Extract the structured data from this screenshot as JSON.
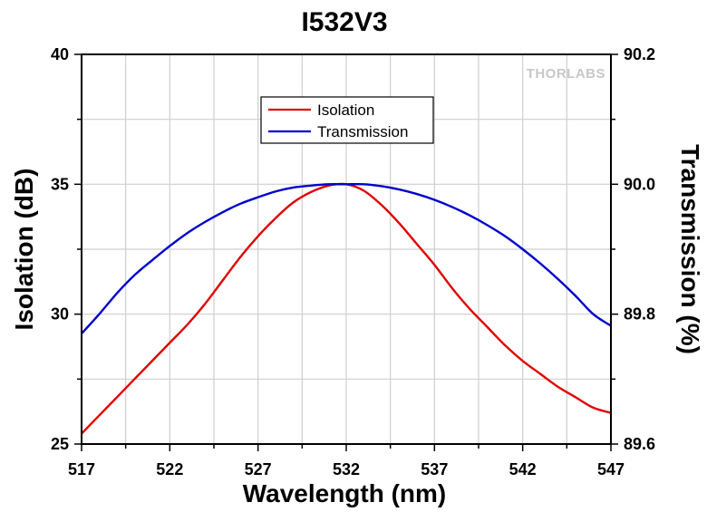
{
  "chart_data": {
    "type": "line",
    "title": "I532V3",
    "xlabel": "Wavelength (nm)",
    "ylabel_left": "Isolation (dB)",
    "ylabel_right": "Transmission (%)",
    "xlim": [
      517,
      547
    ],
    "ylim_left": [
      25,
      40
    ],
    "ylim_right": [
      89.6,
      90.2
    ],
    "x_ticks": [
      517,
      522,
      527,
      532,
      537,
      542,
      547
    ],
    "x_tick_labels": [
      "517",
      "522",
      "527",
      "532",
      "537",
      "542",
      "547"
    ],
    "y_left_ticks": [
      25,
      30,
      35,
      40
    ],
    "y_left_tick_labels": [
      "25",
      "30",
      "35",
      "40"
    ],
    "y_right_ticks": [
      89.6,
      89.8,
      90.0,
      90.2
    ],
    "y_right_tick_labels": [
      "89.6",
      "89.8",
      "90.0",
      "90.2"
    ],
    "grid": true,
    "legend_position": "top-center",
    "logo": "THORLABS",
    "series": [
      {
        "name": "Isolation",
        "color": "#e00000",
        "axis": "left",
        "x": [
          517,
          518,
          519,
          520,
          521,
          522,
          523,
          524,
          525,
          526,
          527,
          528,
          529,
          530,
          531,
          532,
          533,
          534,
          535,
          536,
          537,
          538,
          539,
          540,
          541,
          542,
          543,
          544,
          545,
          546,
          547
        ],
        "y": [
          25.4,
          26.1,
          26.8,
          27.5,
          28.2,
          28.9,
          29.6,
          30.4,
          31.3,
          32.2,
          33.0,
          33.7,
          34.3,
          34.7,
          34.95,
          35.0,
          34.75,
          34.2,
          33.5,
          32.7,
          31.9,
          31.0,
          30.2,
          29.5,
          28.8,
          28.2,
          27.7,
          27.2,
          26.8,
          26.4,
          26.2
        ]
      },
      {
        "name": "Transmission",
        "color": "#0000cc",
        "axis": "right",
        "x": [
          517,
          518,
          519,
          520,
          521,
          522,
          523,
          524,
          525,
          526,
          527,
          528,
          529,
          530,
          531,
          532,
          533,
          534,
          535,
          536,
          537,
          538,
          539,
          540,
          541,
          542,
          543,
          544,
          545,
          546,
          547
        ],
        "y": [
          89.77,
          89.8,
          89.832,
          89.86,
          89.883,
          89.905,
          89.925,
          89.942,
          89.957,
          89.97,
          89.98,
          89.989,
          89.995,
          89.998,
          90.0,
          90.0,
          90.0,
          89.997,
          89.992,
          89.985,
          89.976,
          89.965,
          89.952,
          89.937,
          89.92,
          89.9,
          89.878,
          89.854,
          89.828,
          89.8,
          89.782
        ]
      }
    ]
  }
}
